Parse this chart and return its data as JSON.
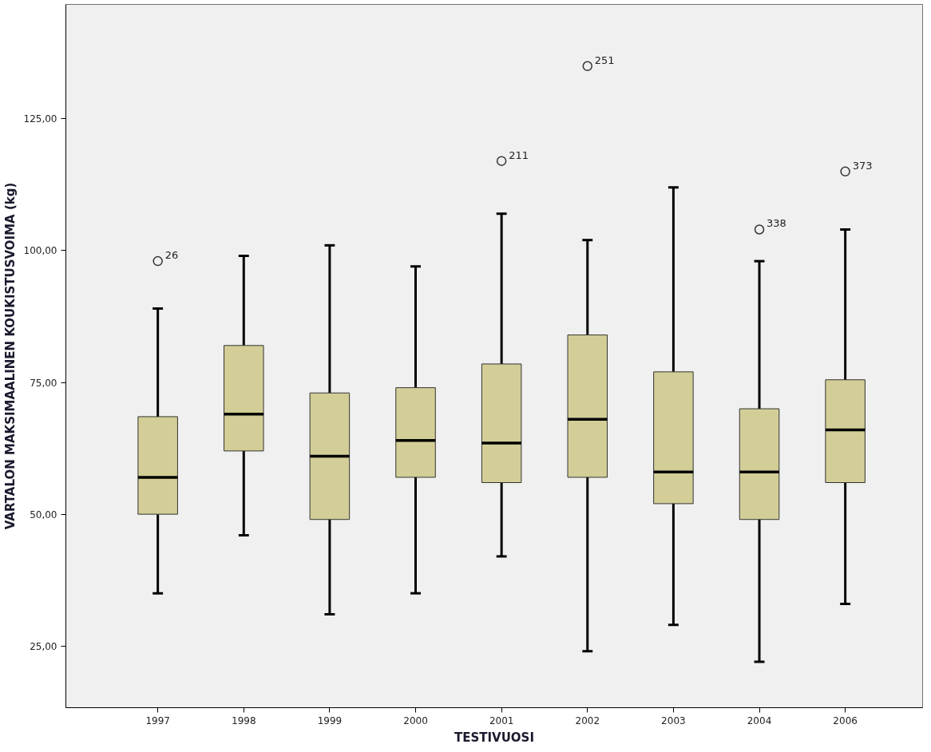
{
  "chart_data": {
    "type": "box",
    "xlabel": "TESTIVUOSI",
    "ylabel": "VARTALON MAKSIMAALINEN KOUKISTUSVOIMA (kg)",
    "categories": [
      "1997",
      "1998",
      "1999",
      "2000",
      "2001",
      "2002",
      "2003",
      "2004",
      "2006"
    ],
    "color": "#d3ce97",
    "boxes": [
      {
        "low": 35,
        "q1": 50,
        "median": 57,
        "q3": 68.5,
        "high": 89,
        "outliers": [
          98
        ]
      },
      {
        "low": 46,
        "q1": 62,
        "median": 69,
        "q3": 82,
        "high": 99
      },
      {
        "low": 31,
        "q1": 49,
        "median": 61,
        "q3": 73,
        "high": 101
      },
      {
        "low": 35,
        "q1": 57,
        "median": 64,
        "q3": 74,
        "high": 97
      },
      {
        "low": 42,
        "q1": 56,
        "median": 63.5,
        "q3": 78.5,
        "high": 107,
        "outliers": [
          117
        ]
      },
      {
        "low": 24,
        "q1": 57,
        "median": 68,
        "q3": 84,
        "high": 102,
        "outliers": [
          135
        ]
      },
      {
        "low": 29,
        "q1": 52,
        "median": 58,
        "q3": 77,
        "high": 112
      },
      {
        "low": 22,
        "q1": 49,
        "median": 58,
        "q3": 70,
        "high": 98,
        "outliers": [
          104
        ]
      },
      {
        "low": 33,
        "q1": 56,
        "median": 66,
        "q3": 75.5,
        "high": 104,
        "outliers": [
          115
        ]
      }
    ],
    "annotations": [
      "26",
      "211",
      "251",
      "338",
      "373"
    ],
    "ylim": [
      13.3,
      146.7
    ],
    "yticks": [
      {
        "value": 25,
        "label": "25,00"
      },
      {
        "value": 50,
        "label": "50,00"
      },
      {
        "value": 75,
        "label": "75,00"
      },
      {
        "value": 100,
        "label": "100,00"
      },
      {
        "value": 125,
        "label": "125,00"
      }
    ],
    "grid": false
  }
}
